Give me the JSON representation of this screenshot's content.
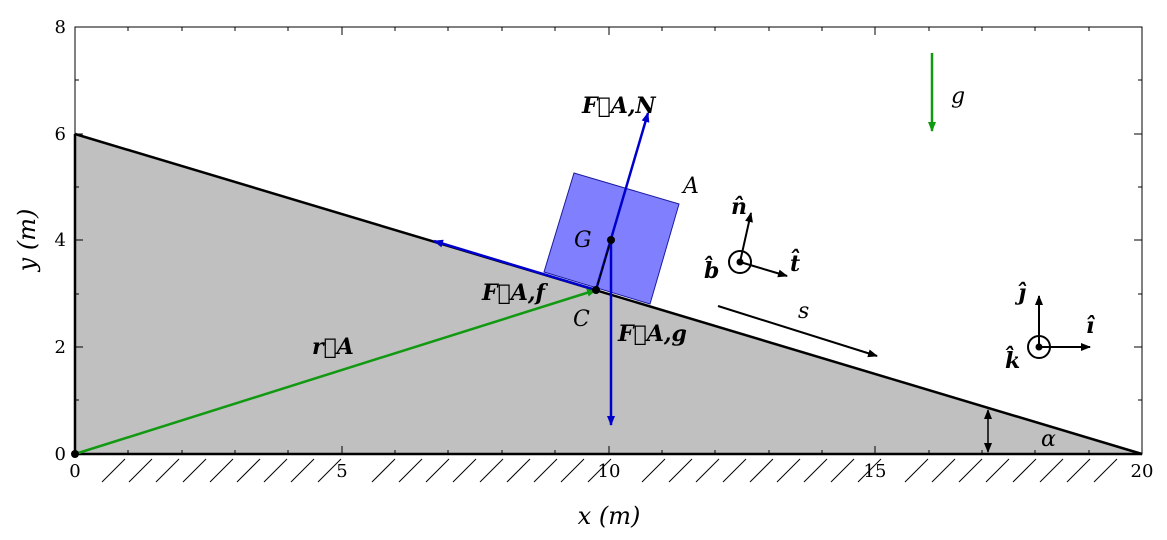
{
  "x_axis": {
    "label": "x (m)",
    "ticks": [
      "0",
      "5",
      "10",
      "15",
      "20"
    ]
  },
  "y_axis": {
    "label": "y (m)",
    "ticks": [
      "0",
      "2",
      "4",
      "6",
      "8"
    ]
  },
  "labels": {
    "gravity": "g",
    "block": "A",
    "center_of_mass": "G",
    "contact_point": "C",
    "position_vector": "r⃗A",
    "normal_force": "F⃗A,N",
    "friction_force": "F⃗A,f",
    "gravity_force": "F⃗A,g",
    "arc_length": "s",
    "angle": "α",
    "frame_local_n": "n̂",
    "frame_local_t": "t̂",
    "frame_local_b": "b̂",
    "frame_global_j": "ĵ",
    "frame_global_i": "î",
    "frame_global_k": "k̂"
  },
  "colors": {
    "ramp_fill": "#c0c0c0",
    "block_fill": "#8080ff",
    "force_blue": "#0000cc",
    "vector_green": "#119911",
    "axis_black": "#000000"
  }
}
